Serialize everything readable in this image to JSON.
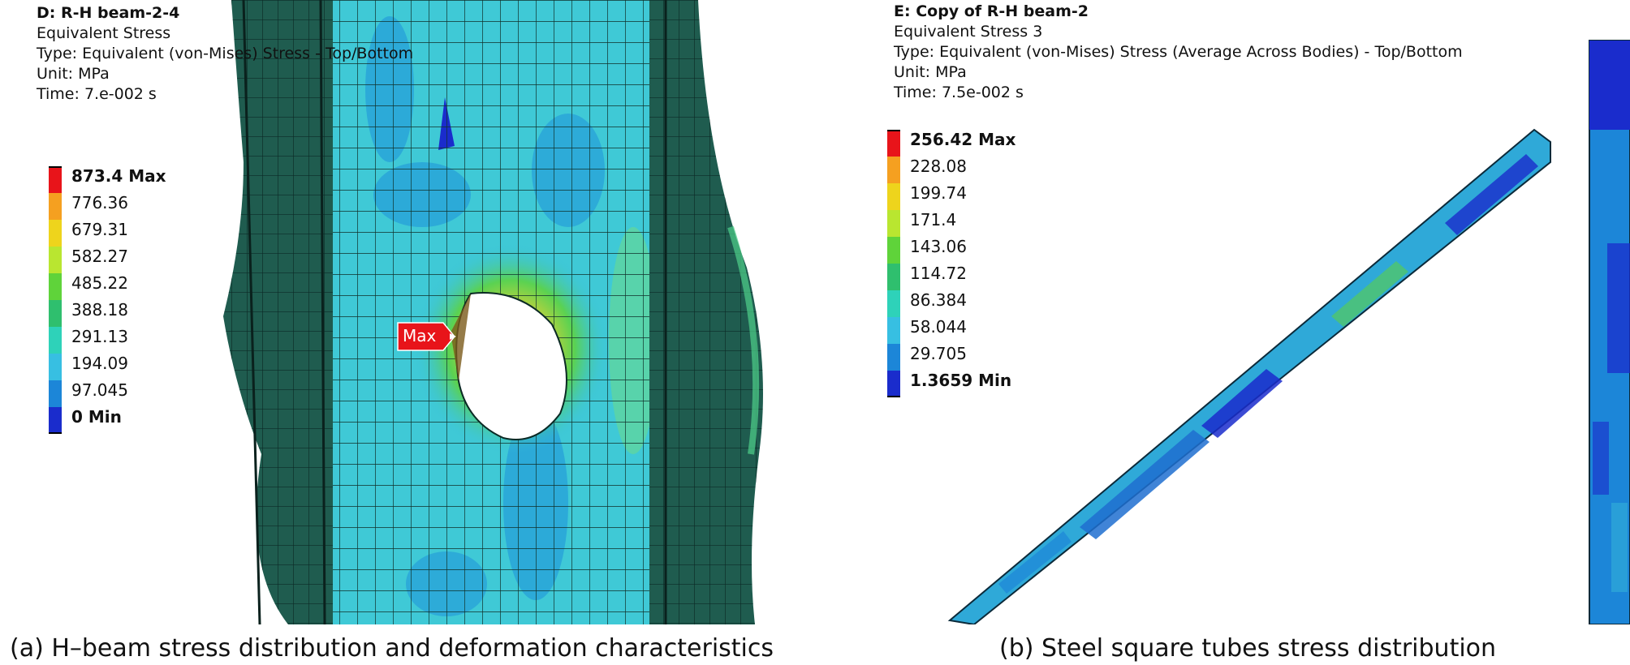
{
  "panel_a": {
    "title": "D: R-H beam-2-4",
    "lines": [
      "Equivalent Stress",
      "Type: Equivalent (von-Mises) Stress - Top/Bottom",
      "Unit: MPa",
      "Time: 7.e-002 s"
    ],
    "legend": [
      {
        "label": "873.4 Max",
        "color": "#e8141a",
        "bold": true
      },
      {
        "label": "776.36",
        "color": "#f5a020",
        "bold": false
      },
      {
        "label": "679.31",
        "color": "#eed41c",
        "bold": false
      },
      {
        "label": "582.27",
        "color": "#b9e630",
        "bold": false
      },
      {
        "label": "485.22",
        "color": "#5fd33a",
        "bold": false
      },
      {
        "label": "388.18",
        "color": "#2fbf6e",
        "bold": false
      },
      {
        "label": "291.13",
        "color": "#2ed2b9",
        "bold": false
      },
      {
        "label": "194.09",
        "color": "#37bfe2",
        "bold": false
      },
      {
        "label": "97.045",
        "color": "#1c86d8",
        "bold": false
      },
      {
        "label": "0 Min",
        "color": "#1a2ccc",
        "bold": true
      }
    ],
    "max_tag": "Max",
    "caption": "(a) H–beam stress distribution and deformation characteristics"
  },
  "panel_b": {
    "title": "E: Copy of R-H beam-2",
    "lines": [
      "Equivalent Stress 3",
      "Type: Equivalent (von-Mises) Stress (Average Across Bodies) - Top/Bottom",
      "Unit: MPa",
      "Time: 7.5e-002 s"
    ],
    "legend": [
      {
        "label": "256.42 Max",
        "color": "#e8141a",
        "bold": true
      },
      {
        "label": "228.08",
        "color": "#f5a020",
        "bold": false
      },
      {
        "label": "199.74",
        "color": "#eed41c",
        "bold": false
      },
      {
        "label": "171.4",
        "color": "#b9e630",
        "bold": false
      },
      {
        "label": "143.06",
        "color": "#5fd33a",
        "bold": false
      },
      {
        "label": "114.72",
        "color": "#2fbf6e",
        "bold": false
      },
      {
        "label": "86.384",
        "color": "#2ed2b9",
        "bold": false
      },
      {
        "label": "58.044",
        "color": "#37bfe2",
        "bold": false
      },
      {
        "label": "29.705",
        "color": "#1c86d8",
        "bold": false
      },
      {
        "label": "1.3659 Min",
        "color": "#1a2ccc",
        "bold": true
      }
    ],
    "caption": "(b) Steel square tubes stress distribution"
  }
}
